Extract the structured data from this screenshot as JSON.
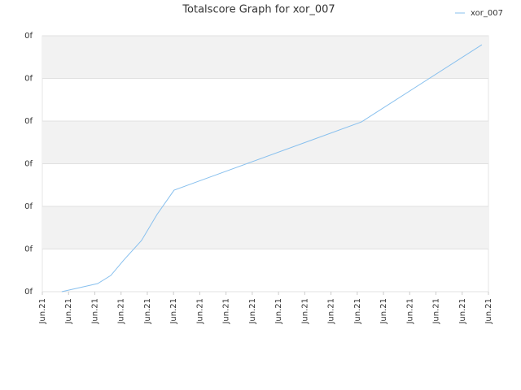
{
  "chart_data": {
    "type": "line",
    "title": "Totalscore Graph for xor_007",
    "x": [
      0.74,
      2.11,
      2.61,
      3.1,
      3.78,
      4.37,
      5.02,
      12.16,
      16.75
    ],
    "series": [
      {
        "name": "xor_007",
        "color": "#88c0ee",
        "values": [
          0,
          0.19,
          0.38,
          0.74,
          1.2,
          1.81,
          2.38,
          3.98,
          5.79
        ]
      }
    ],
    "xlim": [
      0,
      17
    ],
    "xticks": [
      {
        "value": 0,
        "label": "Jun.21"
      },
      {
        "value": 1,
        "label": "Jun.21"
      },
      {
        "value": 2,
        "label": "Jun.21"
      },
      {
        "value": 3,
        "label": "Jun.21"
      },
      {
        "value": 4,
        "label": "Jun.21"
      },
      {
        "value": 5,
        "label": "Jun.21"
      },
      {
        "value": 6,
        "label": "Jun.21"
      },
      {
        "value": 7,
        "label": "Jun.21"
      },
      {
        "value": 8,
        "label": "Jun.21"
      },
      {
        "value": 9,
        "label": "Jun.21"
      },
      {
        "value": 10,
        "label": "Jun.21"
      },
      {
        "value": 11,
        "label": "Jun.21"
      },
      {
        "value": 12,
        "label": "Jun.21"
      },
      {
        "value": 13,
        "label": "Jun.21"
      },
      {
        "value": 14,
        "label": "Jun.21"
      },
      {
        "value": 15,
        "label": "Jun.21"
      },
      {
        "value": 16,
        "label": "Jun.21"
      },
      {
        "value": 17,
        "label": "Jun.21"
      }
    ],
    "ylim": [
      0,
      6
    ],
    "yticks": [
      {
        "value": 0,
        "label": "0f"
      },
      {
        "value": 1,
        "label": "0f"
      },
      {
        "value": 2,
        "label": "0f"
      },
      {
        "value": 3,
        "label": "0f"
      },
      {
        "value": 4,
        "label": "0f"
      },
      {
        "value": 5,
        "label": "0f"
      },
      {
        "value": 6,
        "label": "0f"
      }
    ],
    "grid": true,
    "legend": "top-right"
  }
}
